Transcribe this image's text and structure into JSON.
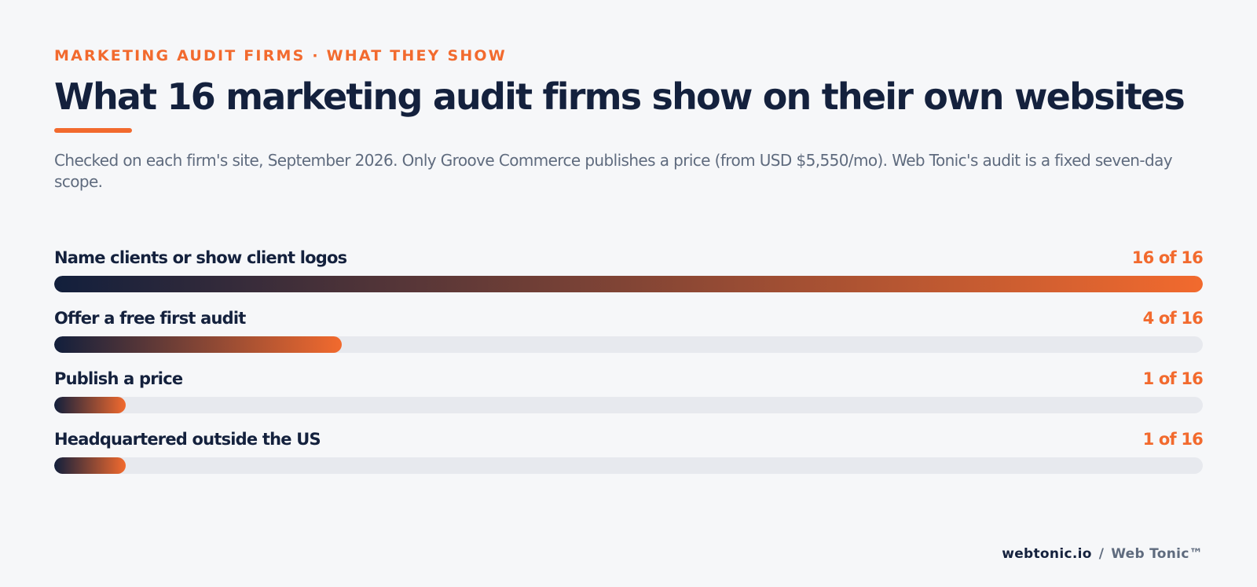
{
  "header": {
    "eyebrow": "MARKETING AUDIT FIRMS · WHAT THEY SHOW",
    "title": "What 16 marketing audit firms show on their own websites",
    "subtitle": "Checked on each firm's site, September 2026. Only Groove Commerce publishes a price (from USD $5,550/mo). Web Tonic's audit is a fixed seven-day scope."
  },
  "chart_data": {
    "type": "bar",
    "orientation": "horizontal",
    "total": 16,
    "categories": [
      "Name clients or show client logos",
      "Offer a free first audit",
      "Publish a price",
      "Headquartered outside the US"
    ],
    "values": [
      16,
      4,
      1,
      1
    ],
    "value_labels": [
      "16 of 16",
      "4 of 16",
      "1 of 16",
      "1 of 16"
    ],
    "xlim": [
      0,
      16
    ],
    "grid": false,
    "colors": {
      "gradient_start": "#121f3c",
      "gradient_end": "#f26a2e",
      "track": "#e7e9ee",
      "value_text": "#f26a2e"
    }
  },
  "footer": {
    "site": "webtonic.io",
    "separator": "/",
    "brand": "Web Tonic™"
  }
}
